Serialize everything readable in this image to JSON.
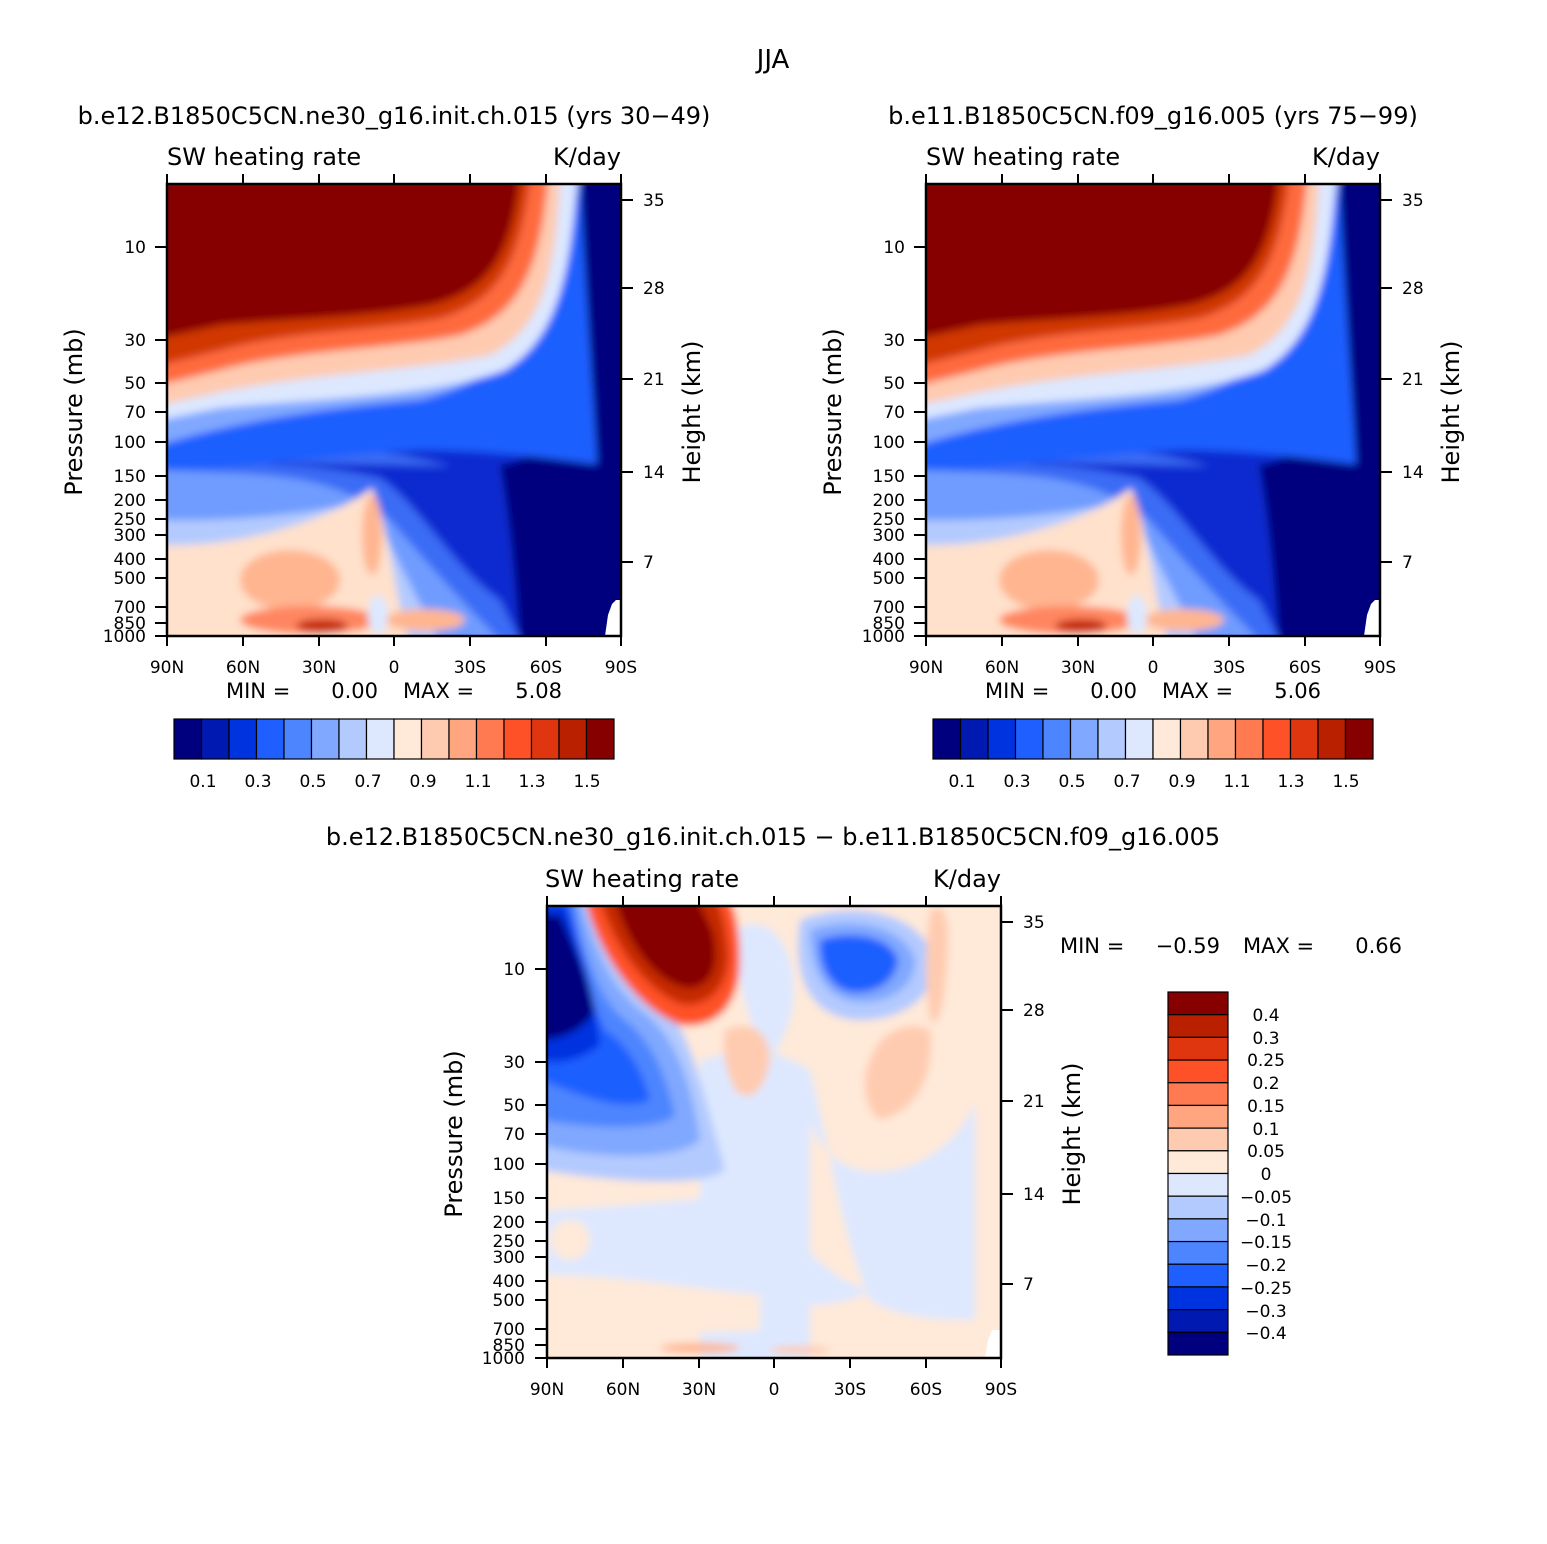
{
  "figure_title": "JJA",
  "chart_data": [
    {
      "type": "heatmap",
      "title": "b.e12.B1850C5CN.ne30_g16.init.ch.015 (yrs 30-49)",
      "variable": "SW heating rate",
      "units": "K/day",
      "xlabel": "",
      "ylabel": "Pressure (mb)",
      "ylabel_right": "Height (km)",
      "x_ticks": [
        "90N",
        "60N",
        "30N",
        "0",
        "30S",
        "60S",
        "90S"
      ],
      "y_ticks": [
        "10",
        "30",
        "50",
        "70",
        "100",
        "150",
        "200",
        "250",
        "300",
        "400",
        "500",
        "700",
        "850",
        "1000"
      ],
      "y_right_ticks": [
        "35",
        "28",
        "21",
        "14",
        "7"
      ],
      "min_label": "MIN =",
      "min_value": "0.00",
      "max_label": "MAX =",
      "max_value": "5.08",
      "colorbar_labels": [
        "0.1",
        "0.3",
        "0.5",
        "0.7",
        "0.9",
        "1.1",
        "1.3",
        "1.5"
      ]
    },
    {
      "type": "heatmap",
      "title": "b.e11.B1850C5CN.f09_g16.005 (yrs 75-99)",
      "variable": "SW heating rate",
      "units": "K/day",
      "xlabel": "",
      "ylabel": "Pressure (mb)",
      "ylabel_right": "Height (km)",
      "x_ticks": [
        "90N",
        "60N",
        "30N",
        "0",
        "30S",
        "60S",
        "90S"
      ],
      "y_ticks": [
        "10",
        "30",
        "50",
        "70",
        "100",
        "150",
        "200",
        "250",
        "300",
        "400",
        "500",
        "700",
        "850",
        "1000"
      ],
      "y_right_ticks": [
        "35",
        "28",
        "21",
        "14",
        "7"
      ],
      "min_label": "MIN =",
      "min_value": "0.00",
      "max_label": "MAX =",
      "max_value": "5.06",
      "colorbar_labels": [
        "0.1",
        "0.3",
        "0.5",
        "0.7",
        "0.9",
        "1.1",
        "1.3",
        "1.5"
      ]
    },
    {
      "type": "heatmap",
      "title": "b.e12.B1850C5CN.ne30_g16.init.ch.015 - b.e11.B1850C5CN.f09_g16.005",
      "variable": "SW heating rate",
      "units": "K/day",
      "xlabel": "",
      "ylabel": "Pressure (mb)",
      "ylabel_right": "Height (km)",
      "x_ticks": [
        "90N",
        "60N",
        "30N",
        "0",
        "30S",
        "60S",
        "90S"
      ],
      "y_ticks": [
        "10",
        "30",
        "50",
        "70",
        "100",
        "150",
        "200",
        "250",
        "300",
        "400",
        "500",
        "700",
        "850",
        "1000"
      ],
      "y_right_ticks": [
        "35",
        "28",
        "21",
        "14",
        "7"
      ],
      "min_label": "MIN =",
      "min_value": "-0.59",
      "max_label": "MAX =",
      "max_value": "0.66",
      "colorbar_labels": [
        "0.4",
        "0.3",
        "0.25",
        "0.2",
        "0.15",
        "0.1",
        "0.05",
        "0",
        "-0.05",
        "-0.1",
        "-0.15",
        "-0.2",
        "-0.25",
        "-0.3",
        "-0.4"
      ]
    }
  ],
  "colors": {
    "abs_scale": [
      "#00007f",
      "#0019b0",
      "#0033e0",
      "#1f5fff",
      "#4d85ff",
      "#80a8ff",
      "#b3caff",
      "#dde8ff",
      "#ffe9d8",
      "#ffcbb0",
      "#ffa580",
      "#ff7a50",
      "#ff5128",
      "#e0360f",
      "#b82000",
      "#860000"
    ],
    "diff_scale": [
      "#860000",
      "#b82000",
      "#e0360f",
      "#ff5128",
      "#ff7a50",
      "#ffa580",
      "#ffcbb0",
      "#ffe9d8",
      "#dde8ff",
      "#b3caff",
      "#80a8ff",
      "#4d85ff",
      "#1f5fff",
      "#0033e0",
      "#0019b0",
      "#00007f"
    ]
  }
}
